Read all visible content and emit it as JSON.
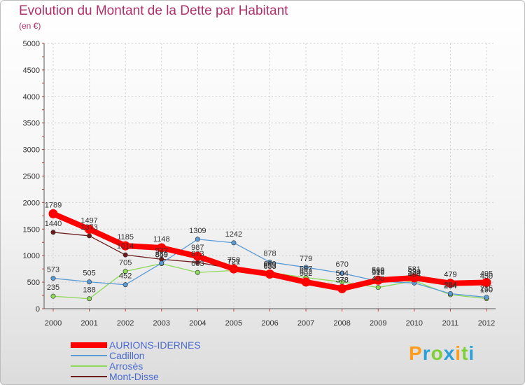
{
  "chart_data": {
    "type": "line",
    "title": "Evolution du Montant de la Dette par Habitant",
    "unit_label": "(en €)",
    "x": [
      "2000",
      "2001",
      "2002",
      "2003",
      "2004",
      "2005",
      "2006",
      "2007",
      "2008",
      "2009",
      "2010",
      "2011",
      "2012"
    ],
    "ylim": [
      0,
      5000
    ],
    "yticks": [
      0,
      500,
      1000,
      1500,
      2000,
      2500,
      3000,
      3500,
      4000,
      4500,
      5000
    ],
    "grid": true,
    "legend_position": "bottom-left",
    "series": [
      {
        "name": "AURIONS-IDERNES",
        "color": "#ff0000",
        "values": [
          1789,
          1497,
          1185,
          1148,
          987,
          750,
          653,
          502,
          378,
          538,
          581,
          479,
          495
        ]
      },
      {
        "name": "Cadillon",
        "color": "#5b9bd5",
        "values": [
          573,
          505,
          452,
          859,
          1309,
          1242,
          878,
          779,
          670,
          516,
          484,
          284,
          215
        ]
      },
      {
        "name": "Arrosès",
        "color": "#8ed85a",
        "values": [
          235,
          188,
          705,
          849,
          683,
          721,
          680,
          587,
          504,
          400,
          524,
          264,
          190
        ]
      },
      {
        "name": "Mont-Disse",
        "color": "#6d1c1c",
        "values": [
          1440,
          1373,
          1014,
          932,
          873,
          750,
          633,
          532,
          378,
          560,
          530,
          479,
          450
        ]
      }
    ]
  },
  "branding": {
    "logo_text": "Proxiti",
    "logo_colors": [
      "#ff9b1d",
      "#2aa0d8",
      "#7fcf3a",
      "#2aa0d8",
      "#ff9b1d",
      "#7fcf3a",
      "#2aa0d8"
    ]
  }
}
